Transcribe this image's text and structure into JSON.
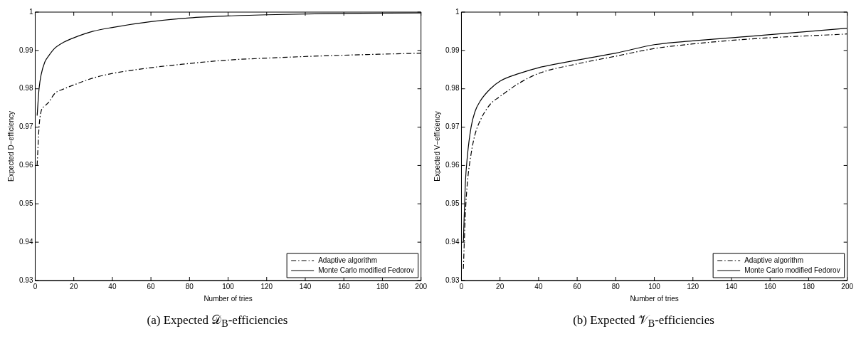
{
  "chart_data": [
    {
      "type": "line",
      "title": "(a) Expected 𝒟$_{B}$-efficiencies",
      "xlabel": "Number of tries",
      "ylabel": "Expected D−efficiency",
      "xlim": [
        0,
        200
      ],
      "ylim": [
        0.93,
        1
      ],
      "xticks": [
        0,
        20,
        40,
        60,
        80,
        100,
        120,
        140,
        160,
        180,
        200
      ],
      "yticks": [
        0.93,
        0.94,
        0.95,
        0.96,
        0.97,
        0.98,
        0.99,
        1
      ],
      "grid": false,
      "legend": "bottom right",
      "marker": "none",
      "series": [
        {
          "name": "Adaptive algorithm",
          "color": "#000000",
          "line_style": "dashed",
          "x": [
            1,
            2,
            3,
            5,
            7,
            10,
            15,
            20,
            30,
            40,
            60,
            80,
            100,
            120,
            150,
            200
          ],
          "values": [
            0.96,
            0.97,
            0.974,
            0.9755,
            0.9765,
            0.9787,
            0.98,
            0.981,
            0.9828,
            0.984,
            0.9855,
            0.9866,
            0.9875,
            0.988,
            0.9886,
            0.9893
          ]
        },
        {
          "name": "Monte Carlo modified Fedorov",
          "color": "#000000",
          "line_style": "solid",
          "x": [
            1,
            2,
            3,
            5,
            7,
            10,
            15,
            20,
            30,
            40,
            60,
            80,
            100,
            120,
            150,
            200
          ],
          "values": [
            0.973,
            0.98,
            0.9835,
            0.987,
            0.9886,
            0.9905,
            0.9922,
            0.9933,
            0.995,
            0.996,
            0.9975,
            0.9985,
            0.999,
            0.9993,
            0.9996,
            0.9998
          ]
        }
      ]
    },
    {
      "type": "line",
      "title": "(b) Expected 𝒱$_{B}$-efficiencies",
      "xlabel": "Number of tries",
      "ylabel": "Expected V−efficiency",
      "xlim": [
        0,
        200
      ],
      "ylim": [
        0.93,
        1
      ],
      "xticks": [
        0,
        20,
        40,
        60,
        80,
        100,
        120,
        140,
        160,
        180,
        200
      ],
      "yticks": [
        0.93,
        0.94,
        0.95,
        0.96,
        0.97,
        0.98,
        0.99,
        1
      ],
      "grid": false,
      "legend": "bottom right",
      "marker": "none",
      "series": [
        {
          "name": "Adaptive algorithm",
          "color": "#000000",
          "line_style": "dashed",
          "x": [
            1,
            2,
            3,
            5,
            7,
            10,
            15,
            20,
            30,
            40,
            60,
            80,
            100,
            120,
            150,
            200
          ],
          "values": [
            0.933,
            0.947,
            0.955,
            0.963,
            0.968,
            0.972,
            0.976,
            0.978,
            0.9815,
            0.984,
            0.9865,
            0.9885,
            0.9905,
            0.9917,
            0.993,
            0.9943
          ]
        },
        {
          "name": "Monte Carlo modified Fedorov",
          "color": "#000000",
          "line_style": "solid",
          "x": [
            1,
            2,
            3,
            5,
            7,
            10,
            15,
            20,
            30,
            40,
            60,
            80,
            100,
            120,
            150,
            200
          ],
          "values": [
            0.94,
            0.955,
            0.962,
            0.97,
            0.974,
            0.977,
            0.98,
            0.982,
            0.984,
            0.9855,
            0.9875,
            0.9893,
            0.9915,
            0.9925,
            0.9937,
            0.9958
          ]
        }
      ]
    }
  ]
}
